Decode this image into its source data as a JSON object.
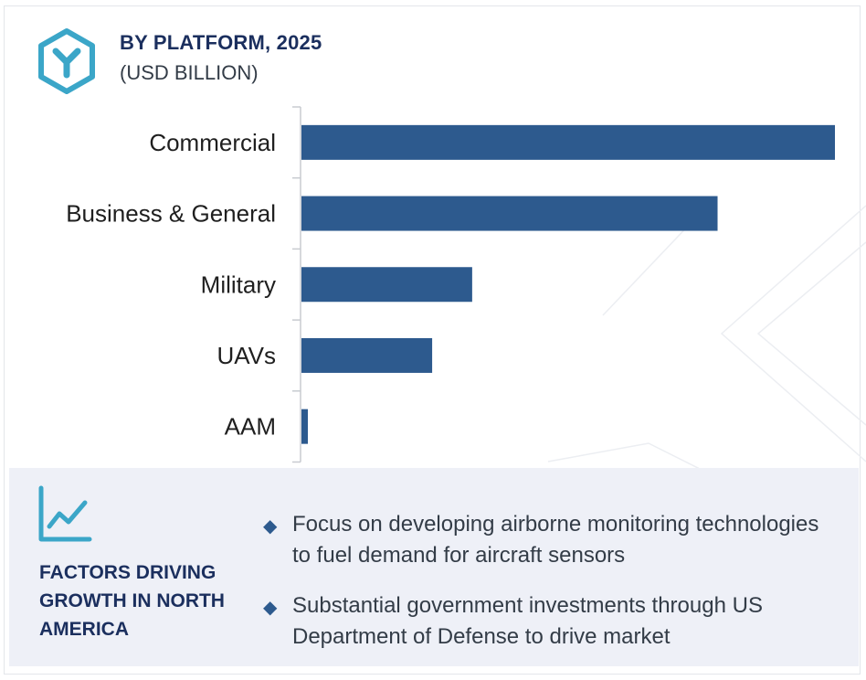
{
  "header": {
    "title": "BY PLATFORM, 2025",
    "subtitle": "(USD BILLION)",
    "icon": "cube-y-icon"
  },
  "colors": {
    "bar": "#2d5a8e",
    "title": "#1b2f5e",
    "icon": "#3ba6c8",
    "panel": "#eef0f7"
  },
  "chart_data": {
    "type": "bar",
    "orientation": "horizontal",
    "categories": [
      "Commercial",
      "Business & General",
      "Military",
      "UAVs",
      "AAM"
    ],
    "values": [
      100,
      78,
      32,
      24.5,
      1.2
    ],
    "title": "BY PLATFORM, 2025",
    "subtitle": "(USD BILLION)",
    "xlabel": "",
    "ylabel": "",
    "xlim": [
      0,
      100
    ],
    "grid": false,
    "legend": "none",
    "note": "no value axis or data labels shown; values are relative bar lengths"
  },
  "factors": {
    "icon": "trend-chart-icon",
    "title": "FACTORS DRIVING GROWTH IN NORTH AMERICA",
    "bullets": [
      "Focus on developing airborne monitoring technologies to fuel demand for aircraft sensors",
      "Substantial government investments through US Department of Defense to drive market"
    ]
  }
}
